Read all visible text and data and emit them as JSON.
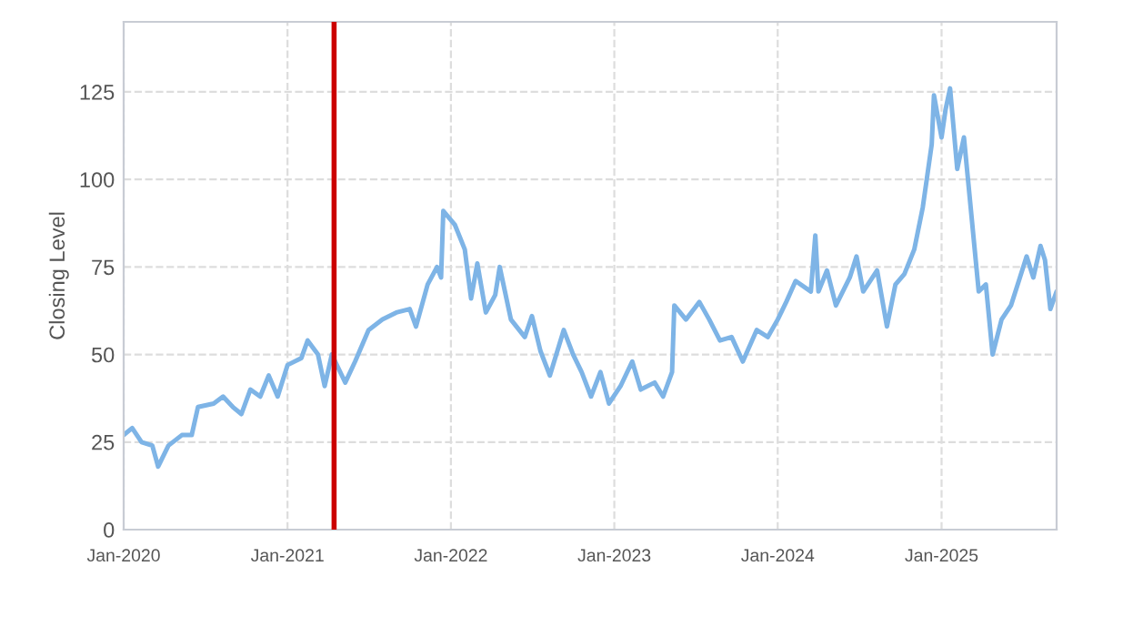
{
  "chart_data": {
    "type": "line",
    "ylabel": "Closing Level",
    "x": [
      "2020-01-01",
      "2020-01-20",
      "2020-02-10",
      "2020-03-05",
      "2020-03-18",
      "2020-04-10",
      "2020-05-10",
      "2020-06-01",
      "2020-06-15",
      "2020-07-20",
      "2020-08-10",
      "2020-09-01",
      "2020-09-20",
      "2020-10-10",
      "2020-11-01",
      "2020-11-20",
      "2020-12-10",
      "2021-01-01",
      "2021-02-01",
      "2021-02-15",
      "2021-03-10",
      "2021-03-25",
      "2021-04-10",
      "2021-04-25",
      "2021-05-10",
      "2021-06-01",
      "2021-07-01",
      "2021-08-01",
      "2021-09-01",
      "2021-10-01",
      "2021-10-15",
      "2021-11-10",
      "2021-12-01",
      "2021-12-10",
      "2021-12-15",
      "2022-01-10",
      "2022-02-01",
      "2022-02-15",
      "2022-03-01",
      "2022-03-20",
      "2022-04-10",
      "2022-04-20",
      "2022-05-15",
      "2022-06-15",
      "2022-07-01",
      "2022-07-20",
      "2022-08-10",
      "2022-09-10",
      "2022-10-01",
      "2022-10-20",
      "2022-11-10",
      "2022-12-01",
      "2022-12-20",
      "2023-01-15",
      "2023-02-10",
      "2023-03-01",
      "2023-04-01",
      "2023-04-20",
      "2023-05-10",
      "2023-05-15",
      "2023-06-10",
      "2023-07-10",
      "2023-08-01",
      "2023-08-25",
      "2023-09-20",
      "2023-10-15",
      "2023-11-15",
      "2023-12-10",
      "2024-01-01",
      "2024-01-20",
      "2024-02-10",
      "2024-03-15",
      "2024-03-25",
      "2024-04-01",
      "2024-04-20",
      "2024-05-10",
      "2024-06-10",
      "2024-06-25",
      "2024-07-10",
      "2024-08-10",
      "2024-09-01",
      "2024-09-20",
      "2024-10-10",
      "2024-11-01",
      "2024-11-20",
      "2024-12-10",
      "2024-12-15",
      "2025-01-01",
      "2025-01-10",
      "2025-01-20",
      "2025-02-05",
      "2025-02-20",
      "2025-03-10",
      "2025-03-25",
      "2025-04-10",
      "2025-04-25",
      "2025-05-15",
      "2025-06-05",
      "2025-06-25",
      "2025-07-10",
      "2025-07-25",
      "2025-08-10",
      "2025-08-20",
      "2025-09-01",
      "2025-09-15"
    ],
    "series": [
      {
        "color": "#7eb4e6",
        "values": [
          27,
          29,
          25,
          24,
          18,
          24,
          27,
          27,
          35,
          36,
          38,
          35,
          33,
          40,
          38,
          44,
          38,
          47,
          49,
          54,
          50,
          41,
          50,
          46,
          42,
          48,
          57,
          60,
          62,
          63,
          58,
          70,
          75,
          72,
          91,
          87,
          80,
          66,
          76,
          62,
          67,
          75,
          60,
          55,
          61,
          51,
          44,
          57,
          50,
          45,
          38,
          45,
          36,
          41,
          48,
          40,
          42,
          38,
          45,
          64,
          60,
          65,
          60,
          54,
          55,
          48,
          57,
          55,
          60,
          65,
          71,
          68,
          84,
          68,
          74,
          64,
          72,
          78,
          68,
          74,
          58,
          70,
          73,
          80,
          92,
          110,
          124,
          112,
          120,
          126,
          103,
          112,
          88,
          68,
          70,
          50,
          60,
          64,
          72,
          78,
          72,
          81,
          77,
          63,
          68
        ]
      }
    ],
    "xlim": [
      "2020-01-01",
      "2025-09-15"
    ],
    "xticks": [
      {
        "value": "2020-01-01",
        "label": "Jan-2020"
      },
      {
        "value": "2021-01-01",
        "label": "Jan-2021"
      },
      {
        "value": "2022-01-01",
        "label": "Jan-2022"
      },
      {
        "value": "2023-01-01",
        "label": "Jan-2023"
      },
      {
        "value": "2024-01-01",
        "label": "Jan-2024"
      },
      {
        "value": "2025-01-01",
        "label": "Jan-2025"
      }
    ],
    "ylim": [
      0,
      145
    ],
    "yticks": [
      0,
      25,
      50,
      75,
      100,
      125
    ],
    "ref_lines": [
      {
        "axis": "x",
        "value": "2021-04-15",
        "color": "#cc0000"
      }
    ],
    "grid": true,
    "legend": false,
    "marker": "none",
    "line_style": "solid"
  }
}
